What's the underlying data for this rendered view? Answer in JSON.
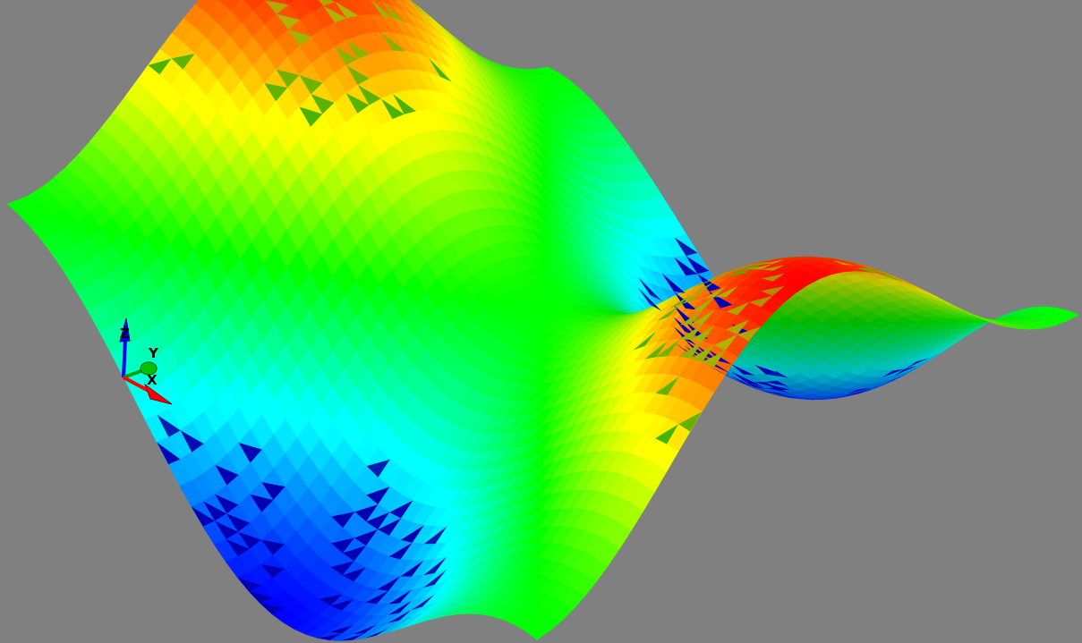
{
  "viewport": {
    "background": "#808080",
    "colormap": [
      "#0000ff",
      "#00ffff",
      "#00ff00",
      "#ffff00",
      "#ff0000"
    ]
  },
  "axes": {
    "x": {
      "label": "X",
      "color": "#ff0000"
    },
    "y": {
      "label": "Y",
      "color": "#00c000"
    },
    "z": {
      "label": "Z",
      "color": "#0000ff"
    }
  }
}
